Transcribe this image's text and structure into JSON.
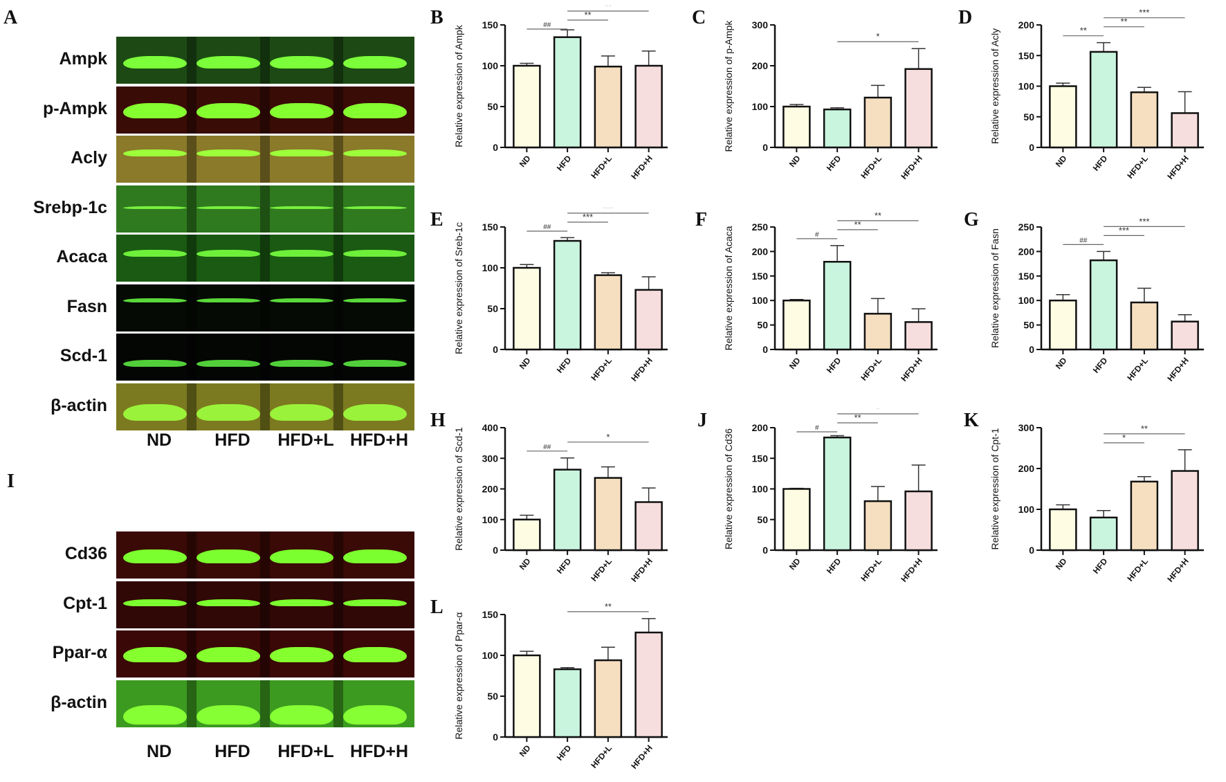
{
  "groups": [
    "ND",
    "HFD",
    "HFD+L",
    "HFD+H"
  ],
  "bar_colors": [
    "#fefde3",
    "#c9f5df",
    "#f6dfc0",
    "#f7dede"
  ],
  "blot_panel_A": {
    "letter": "A",
    "rows": [
      "Ampk",
      "p-Ampk",
      "Acly",
      "Srebp-1c",
      "Acaca",
      "Fasn",
      "Scd-1",
      "β-actin"
    ],
    "lanes": [
      "ND",
      "HFD",
      "HFD+L",
      "HFD+H"
    ]
  },
  "blot_panel_I": {
    "letter": "I",
    "rows": [
      "Cd36",
      "Cpt-1",
      "Ppar-α",
      "β-actin"
    ],
    "lanes": [
      "ND",
      "HFD",
      "HFD+L",
      "HFD+H"
    ]
  },
  "chart_data": [
    {
      "panel": "B",
      "type": "bar",
      "title": "",
      "ylabel": "Relative expression of Ampk",
      "categories": [
        "ND",
        "HFD",
        "HFD+L",
        "HFD+H"
      ],
      "values": [
        100,
        135,
        99,
        100
      ],
      "errors": [
        3,
        9,
        13,
        18
      ],
      "ylim": [
        0,
        150
      ],
      "yticks": [
        0,
        50,
        100,
        150
      ],
      "annotations": [
        {
          "from": 0,
          "to": 1,
          "label": "##",
          "level": 0
        },
        {
          "from": 1,
          "to": 2,
          "label": "**",
          "level": 1
        },
        {
          "from": 1,
          "to": 3,
          "label": "**",
          "level": 2
        }
      ]
    },
    {
      "panel": "C",
      "type": "bar",
      "ylabel": "Relative expression of p-Ampk",
      "categories": [
        "ND",
        "HFD",
        "HFD+L",
        "HFD+H"
      ],
      "values": [
        100,
        93,
        122,
        192
      ],
      "errors": [
        5,
        4,
        30,
        50
      ],
      "ylim": [
        0,
        300
      ],
      "yticks": [
        0,
        100,
        200,
        300
      ],
      "annotations": [
        {
          "from": 1,
          "to": 3,
          "label": "*",
          "level": 0
        }
      ]
    },
    {
      "panel": "D",
      "type": "bar",
      "ylabel": "Relative expression of Acly",
      "categories": [
        "ND",
        "HFD",
        "HFD+L",
        "HFD+H"
      ],
      "values": [
        100,
        156,
        90,
        56
      ],
      "errors": [
        5,
        15,
        8,
        35
      ],
      "ylim": [
        0,
        200
      ],
      "yticks": [
        0,
        50,
        100,
        150,
        200
      ],
      "annotations": [
        {
          "from": 0,
          "to": 1,
          "label": "**",
          "level": 0
        },
        {
          "from": 1,
          "to": 2,
          "label": "**",
          "level": 1
        },
        {
          "from": 1,
          "to": 3,
          "label": "***",
          "level": 2
        }
      ]
    },
    {
      "panel": "E",
      "type": "bar",
      "ylabel": "Relative expression of Sreb-1c",
      "categories": [
        "ND",
        "HFD",
        "HFD+L",
        "HFD+H"
      ],
      "values": [
        100,
        133,
        91,
        73
      ],
      "errors": [
        4,
        4,
        3,
        16
      ],
      "ylim": [
        0,
        150
      ],
      "yticks": [
        0,
        50,
        100,
        150
      ],
      "annotations": [
        {
          "from": 0,
          "to": 1,
          "label": "##",
          "level": 0
        },
        {
          "from": 1,
          "to": 2,
          "label": "***",
          "level": 1
        },
        {
          "from": 1,
          "to": 3,
          "label": "***",
          "level": 2
        }
      ]
    },
    {
      "panel": "F",
      "type": "bar",
      "ylabel": "Relative expression of Acaca",
      "categories": [
        "ND",
        "HFD",
        "HFD+L",
        "HFD+H"
      ],
      "values": [
        100,
        179,
        73,
        56
      ],
      "errors": [
        2,
        33,
        31,
        27
      ],
      "ylim": [
        0,
        250
      ],
      "yticks": [
        0,
        50,
        100,
        150,
        200,
        250
      ],
      "annotations": [
        {
          "from": 0,
          "to": 1,
          "label": "#",
          "level": 0
        },
        {
          "from": 1,
          "to": 2,
          "label": "**",
          "level": 1
        },
        {
          "from": 1,
          "to": 3,
          "label": "**",
          "level": 2
        }
      ]
    },
    {
      "panel": "G",
      "type": "bar",
      "ylabel": "Relative expression of Fasn",
      "categories": [
        "ND",
        "HFD",
        "HFD+L",
        "HFD+H"
      ],
      "values": [
        100,
        182,
        96,
        57
      ],
      "errors": [
        12,
        18,
        29,
        14
      ],
      "ylim": [
        0,
        250
      ],
      "yticks": [
        0,
        50,
        100,
        150,
        200,
        250
      ],
      "annotations": [
        {
          "from": 0,
          "to": 1,
          "label": "##",
          "level": 0
        },
        {
          "from": 1,
          "to": 2,
          "label": "***",
          "level": 1
        },
        {
          "from": 1,
          "to": 3,
          "label": "***",
          "level": 2
        }
      ]
    },
    {
      "panel": "H",
      "type": "bar",
      "ylabel": "Relative expression of Scd-1",
      "categories": [
        "ND",
        "HFD",
        "HFD+L",
        "HFD+H"
      ],
      "values": [
        100,
        263,
        236,
        157
      ],
      "errors": [
        14,
        38,
        36,
        46
      ],
      "ylim": [
        0,
        400
      ],
      "yticks": [
        0,
        100,
        200,
        300,
        400
      ],
      "annotations": [
        {
          "from": 0,
          "to": 1,
          "label": "##",
          "level": 0
        },
        {
          "from": 1,
          "to": 3,
          "label": "*",
          "level": 1
        }
      ]
    },
    {
      "panel": "J",
      "type": "bar",
      "ylabel": "Relative expression of Cd36",
      "categories": [
        "ND",
        "HFD",
        "HFD+L",
        "HFD+H"
      ],
      "values": [
        100,
        184,
        80,
        96
      ],
      "errors": [
        1,
        3,
        24,
        43
      ],
      "ylim": [
        0,
        200
      ],
      "yticks": [
        0,
        50,
        100,
        150,
        200
      ],
      "annotations": [
        {
          "from": 0,
          "to": 1,
          "label": "#",
          "level": 0
        },
        {
          "from": 1,
          "to": 2,
          "label": "**",
          "level": 1
        },
        {
          "from": 1,
          "to": 3,
          "label": "*",
          "level": 2
        }
      ]
    },
    {
      "panel": "K",
      "type": "bar",
      "ylabel": "Relative expression of Cpt-1",
      "categories": [
        "ND",
        "HFD",
        "HFD+L",
        "HFD+H"
      ],
      "values": [
        100,
        80,
        168,
        194
      ],
      "errors": [
        11,
        17,
        12,
        52
      ],
      "ylim": [
        0,
        300
      ],
      "yticks": [
        0,
        100,
        200,
        300
      ],
      "annotations": [
        {
          "from": 1,
          "to": 2,
          "label": "*",
          "level": 0
        },
        {
          "from": 1,
          "to": 3,
          "label": "**",
          "level": 1
        }
      ]
    },
    {
      "panel": "L",
      "type": "bar",
      "ylabel": "Relative expression of Ppar-α",
      "categories": [
        "ND",
        "HFD",
        "HFD+L",
        "HFD+H"
      ],
      "values": [
        100,
        83,
        94,
        128
      ],
      "errors": [
        5,
        2,
        16,
        17
      ],
      "ylim": [
        0,
        150
      ],
      "yticks": [
        0,
        50,
        100,
        150
      ],
      "annotations": [
        {
          "from": 1,
          "to": 3,
          "label": "**",
          "level": 0
        }
      ]
    }
  ]
}
